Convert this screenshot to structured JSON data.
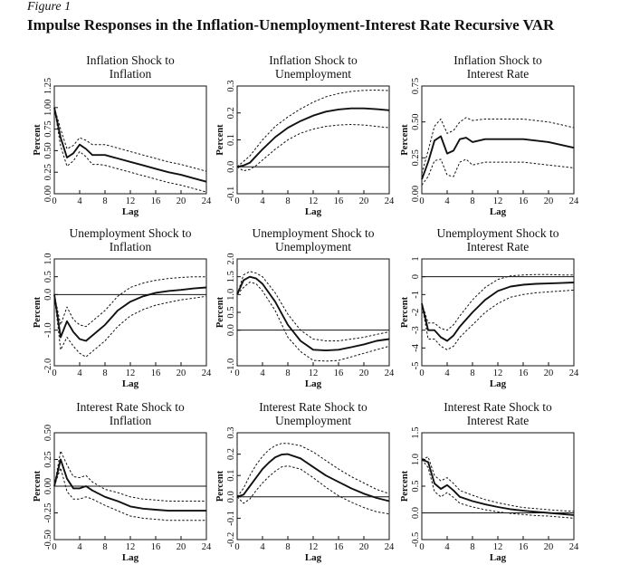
{
  "figure_label": "Figure 1",
  "figure_title": "Impulse Responses in the Inflation-Unemployment-Interest Rate Recursive VAR",
  "chart_data": [
    {
      "type": "line",
      "title_lines": [
        "Inflation Shock to",
        "Inflation"
      ],
      "xlabel": "Lag",
      "ylabel": "Percent",
      "xlim": [
        0,
        24
      ],
      "ylim": [
        0,
        1.25
      ],
      "xticks": [
        "0",
        "4",
        "8",
        "12",
        "16",
        "20",
        "24"
      ],
      "yticks": [
        "0.00",
        "0.25",
        "0.50",
        "0.75",
        "1.00",
        "1.25"
      ],
      "zero_line": false,
      "x": [
        0,
        1,
        2,
        3,
        4,
        5,
        6,
        7,
        8,
        10,
        12,
        14,
        16,
        18,
        20,
        22,
        24
      ],
      "series": [
        {
          "style": "solid",
          "values": [
            1.0,
            0.65,
            0.42,
            0.47,
            0.57,
            0.52,
            0.45,
            0.45,
            0.45,
            0.41,
            0.37,
            0.33,
            0.29,
            0.25,
            0.22,
            0.18,
            0.14
          ]
        },
        {
          "style": "dashed",
          "values": [
            1.0,
            0.75,
            0.52,
            0.56,
            0.65,
            0.62,
            0.57,
            0.57,
            0.57,
            0.53,
            0.49,
            0.45,
            0.41,
            0.37,
            0.34,
            0.3,
            0.26
          ]
        },
        {
          "style": "dashed",
          "values": [
            1.0,
            0.55,
            0.32,
            0.38,
            0.49,
            0.43,
            0.34,
            0.34,
            0.33,
            0.29,
            0.25,
            0.21,
            0.17,
            0.13,
            0.1,
            0.06,
            0.02
          ]
        }
      ]
    },
    {
      "type": "line",
      "title_lines": [
        "Inflation Shock to",
        "Unemployment"
      ],
      "xlabel": "Lag",
      "ylabel": "Percent",
      "xlim": [
        0,
        24
      ],
      "ylim": [
        -0.1,
        0.3
      ],
      "xticks": [
        "0",
        "4",
        "8",
        "12",
        "16",
        "20",
        "24"
      ],
      "yticks": [
        "-0.1",
        "0.0",
        "0.1",
        "0.2",
        "0.3"
      ],
      "zero_line": true,
      "x": [
        0,
        1,
        2,
        3,
        4,
        6,
        8,
        10,
        12,
        14,
        16,
        18,
        20,
        22,
        24
      ],
      "series": [
        {
          "style": "solid",
          "values": [
            0.0,
            0.005,
            0.015,
            0.04,
            0.065,
            0.11,
            0.145,
            0.17,
            0.19,
            0.205,
            0.213,
            0.217,
            0.217,
            0.214,
            0.21
          ]
        },
        {
          "style": "dashed",
          "values": [
            0.0,
            0.02,
            0.04,
            0.07,
            0.1,
            0.15,
            0.185,
            0.215,
            0.24,
            0.26,
            0.272,
            0.28,
            0.284,
            0.285,
            0.283
          ]
        },
        {
          "style": "dashed",
          "values": [
            0.0,
            -0.015,
            -0.01,
            0.005,
            0.025,
            0.065,
            0.1,
            0.125,
            0.14,
            0.15,
            0.155,
            0.157,
            0.155,
            0.15,
            0.145
          ]
        }
      ]
    },
    {
      "type": "line",
      "title_lines": [
        "Inflation Shock to",
        "Interest Rate"
      ],
      "xlabel": "Lag",
      "ylabel": "Percent",
      "xlim": [
        0,
        24
      ],
      "ylim": [
        0,
        0.75
      ],
      "xticks": [
        "0",
        "4",
        "8",
        "12",
        "16",
        "20",
        "24"
      ],
      "yticks": [
        "0.00",
        "0.25",
        "0.50",
        "0.75"
      ],
      "zero_line": false,
      "x": [
        0,
        1,
        2,
        3,
        4,
        5,
        6,
        7,
        8,
        10,
        12,
        14,
        16,
        18,
        20,
        22,
        24
      ],
      "series": [
        {
          "style": "solid",
          "values": [
            0.1,
            0.22,
            0.37,
            0.4,
            0.28,
            0.3,
            0.38,
            0.39,
            0.36,
            0.38,
            0.38,
            0.38,
            0.38,
            0.37,
            0.36,
            0.34,
            0.32
          ]
        },
        {
          "style": "dashed",
          "values": [
            0.14,
            0.3,
            0.47,
            0.52,
            0.42,
            0.44,
            0.5,
            0.53,
            0.51,
            0.52,
            0.52,
            0.52,
            0.52,
            0.51,
            0.5,
            0.48,
            0.46
          ]
        },
        {
          "style": "dashed",
          "values": [
            0.06,
            0.12,
            0.23,
            0.24,
            0.13,
            0.12,
            0.22,
            0.24,
            0.2,
            0.22,
            0.22,
            0.22,
            0.22,
            0.21,
            0.2,
            0.19,
            0.18
          ]
        }
      ]
    },
    {
      "type": "line",
      "title_lines": [
        "Unemployment Shock to",
        "Inflation"
      ],
      "xlabel": "Lag",
      "ylabel": "Percent",
      "xlim": [
        0,
        24
      ],
      "ylim": [
        -2.0,
        1.0
      ],
      "xticks": [
        "0",
        "4",
        "8",
        "12",
        "16",
        "20",
        "24"
      ],
      "yticks": [
        "-2.0",
        "-1.0",
        "0.0",
        "0.5",
        "1.0"
      ],
      "zero_line": true,
      "x": [
        0,
        1,
        2,
        3,
        4,
        5,
        6,
        8,
        10,
        12,
        14,
        16,
        18,
        20,
        22,
        24
      ],
      "series": [
        {
          "style": "solid",
          "values": [
            0.0,
            -1.2,
            -0.75,
            -1.05,
            -1.25,
            -1.3,
            -1.15,
            -0.85,
            -0.45,
            -0.2,
            -0.05,
            0.05,
            0.1,
            0.13,
            0.17,
            0.2
          ]
        },
        {
          "style": "dashed",
          "values": [
            0.0,
            -0.85,
            -0.35,
            -0.7,
            -0.85,
            -0.9,
            -0.75,
            -0.45,
            -0.05,
            0.2,
            0.32,
            0.4,
            0.45,
            0.48,
            0.5,
            0.5
          ]
        },
        {
          "style": "dashed",
          "values": [
            0.0,
            -1.55,
            -1.2,
            -1.45,
            -1.65,
            -1.75,
            -1.6,
            -1.3,
            -0.9,
            -0.6,
            -0.42,
            -0.3,
            -0.22,
            -0.15,
            -0.1,
            -0.05
          ]
        }
      ]
    },
    {
      "type": "line",
      "title_lines": [
        "Unemployment Shock to",
        "Unemployment"
      ],
      "xlabel": "Lag",
      "ylabel": "Percent",
      "xlim": [
        0,
        24
      ],
      "ylim": [
        -1.0,
        2.0
      ],
      "xticks": [
        "0",
        "4",
        "8",
        "12",
        "16",
        "20",
        "24"
      ],
      "yticks": [
        "-1.0",
        "0.0",
        "0.5",
        "1.0",
        "1.5",
        "2.0"
      ],
      "zero_line": true,
      "x": [
        0,
        1,
        2,
        3,
        4,
        6,
        8,
        10,
        12,
        14,
        16,
        18,
        20,
        22,
        24
      ],
      "series": [
        {
          "style": "solid",
          "values": [
            1.0,
            1.4,
            1.5,
            1.45,
            1.3,
            0.8,
            0.15,
            -0.3,
            -0.55,
            -0.57,
            -0.55,
            -0.48,
            -0.4,
            -0.3,
            -0.25
          ]
        },
        {
          "style": "dashed",
          "values": [
            1.0,
            1.55,
            1.65,
            1.6,
            1.5,
            1.05,
            0.45,
            0.0,
            -0.25,
            -0.3,
            -0.3,
            -0.25,
            -0.2,
            -0.12,
            -0.05
          ]
        },
        {
          "style": "dashed",
          "values": [
            1.0,
            1.2,
            1.35,
            1.3,
            1.1,
            0.55,
            -0.2,
            -0.6,
            -0.85,
            -0.87,
            -0.85,
            -0.75,
            -0.65,
            -0.55,
            -0.45
          ]
        }
      ]
    },
    {
      "type": "line",
      "title_lines": [
        "Unemployment Shock to",
        "Interest Rate"
      ],
      "xlabel": "Lag",
      "ylabel": "Percent",
      "xlim": [
        0,
        24
      ],
      "ylim": [
        -5,
        1
      ],
      "xticks": [
        "0",
        "4",
        "8",
        "12",
        "16",
        "20",
        "24"
      ],
      "yticks": [
        "-5",
        "-4",
        "-3",
        "-2",
        "-1",
        "0",
        "1"
      ],
      "zero_line": true,
      "x": [
        0,
        1,
        2,
        3,
        4,
        5,
        6,
        8,
        10,
        12,
        14,
        16,
        18,
        20,
        22,
        24
      ],
      "series": [
        {
          "style": "solid",
          "values": [
            -1.5,
            -3.0,
            -3.0,
            -3.4,
            -3.6,
            -3.3,
            -2.8,
            -2.0,
            -1.3,
            -0.8,
            -0.55,
            -0.45,
            -0.4,
            -0.38,
            -0.35,
            -0.32
          ]
        },
        {
          "style": "dashed",
          "values": [
            -1.5,
            -2.6,
            -2.6,
            -2.9,
            -3.0,
            -2.7,
            -2.2,
            -1.3,
            -0.6,
            -0.15,
            0.05,
            0.1,
            0.12,
            0.12,
            0.1,
            0.1
          ]
        },
        {
          "style": "dashed",
          "values": [
            -1.5,
            -3.5,
            -3.5,
            -3.9,
            -4.1,
            -3.9,
            -3.4,
            -2.7,
            -2.0,
            -1.5,
            -1.15,
            -1.0,
            -0.9,
            -0.85,
            -0.8,
            -0.75
          ]
        }
      ]
    },
    {
      "type": "line",
      "title_lines": [
        "Interest Rate Shock to",
        "Inflation"
      ],
      "xlabel": "Lag",
      "ylabel": "Percent",
      "xlim": [
        0,
        24
      ],
      "ylim": [
        -0.5,
        0.5
      ],
      "xticks": [
        "0",
        "4",
        "8",
        "12",
        "16",
        "20",
        "24"
      ],
      "yticks": [
        "-0.50",
        "-0.25",
        "0.00",
        "0.25",
        "0.50"
      ],
      "zero_line": true,
      "x": [
        0,
        1,
        2,
        3,
        4,
        5,
        6,
        8,
        10,
        12,
        14,
        16,
        18,
        20,
        22,
        24
      ],
      "series": [
        {
          "style": "solid",
          "values": [
            0.0,
            0.25,
            0.07,
            -0.02,
            -0.02,
            0.0,
            -0.04,
            -0.1,
            -0.14,
            -0.19,
            -0.21,
            -0.22,
            -0.23,
            -0.23,
            -0.23,
            -0.23
          ]
        },
        {
          "style": "dashed",
          "values": [
            0.0,
            0.33,
            0.2,
            0.09,
            0.08,
            0.1,
            0.04,
            -0.03,
            -0.06,
            -0.1,
            -0.12,
            -0.13,
            -0.14,
            -0.14,
            -0.14,
            -0.14
          ]
        },
        {
          "style": "dashed",
          "values": [
            0.0,
            0.17,
            -0.05,
            -0.12,
            -0.12,
            -0.1,
            -0.12,
            -0.18,
            -0.23,
            -0.28,
            -0.3,
            -0.31,
            -0.32,
            -0.32,
            -0.32,
            -0.32
          ]
        }
      ]
    },
    {
      "type": "line",
      "title_lines": [
        "Interest Rate Shock to",
        "Unemployment"
      ],
      "xlabel": "Lag",
      "ylabel": "Percent",
      "xlim": [
        0,
        24
      ],
      "ylim": [
        -0.2,
        0.3
      ],
      "xticks": [
        "0",
        "4",
        "8",
        "12",
        "16",
        "20",
        "24"
      ],
      "yticks": [
        "-0.2",
        "-0.1",
        "0.0",
        "0.1",
        "0.2",
        "0.3"
      ],
      "zero_line": true,
      "x": [
        0,
        1,
        2,
        3,
        4,
        5,
        6,
        7,
        8,
        10,
        12,
        14,
        16,
        18,
        20,
        22,
        24
      ],
      "series": [
        {
          "style": "solid",
          "values": [
            0.0,
            0.01,
            0.05,
            0.09,
            0.13,
            0.16,
            0.185,
            0.198,
            0.2,
            0.18,
            0.14,
            0.1,
            0.07,
            0.04,
            0.015,
            -0.005,
            -0.02
          ]
        },
        {
          "style": "dashed",
          "values": [
            0.0,
            0.04,
            0.1,
            0.15,
            0.19,
            0.22,
            0.24,
            0.25,
            0.25,
            0.24,
            0.21,
            0.17,
            0.13,
            0.095,
            0.065,
            0.035,
            0.015
          ]
        },
        {
          "style": "dashed",
          "values": [
            0.0,
            -0.03,
            -0.01,
            0.03,
            0.065,
            0.095,
            0.12,
            0.14,
            0.145,
            0.13,
            0.09,
            0.045,
            0.005,
            -0.025,
            -0.05,
            -0.07,
            -0.08
          ]
        }
      ]
    },
    {
      "type": "line",
      "title_lines": [
        "Interest Rate Shock to",
        "Interest Rate"
      ],
      "xlabel": "Lag",
      "ylabel": "Percent",
      "xlim": [
        0,
        24
      ],
      "ylim": [
        -0.5,
        1.5
      ],
      "xticks": [
        "0",
        "4",
        "8",
        "12",
        "16",
        "20",
        "24"
      ],
      "yticks": [
        "-0.5",
        "0.0",
        "0.5",
        "1.0",
        "1.5"
      ],
      "zero_line": true,
      "x": [
        0,
        1,
        2,
        3,
        4,
        5,
        6,
        8,
        10,
        12,
        14,
        16,
        18,
        20,
        22,
        24
      ],
      "series": [
        {
          "style": "solid",
          "values": [
            1.0,
            0.95,
            0.55,
            0.45,
            0.52,
            0.42,
            0.3,
            0.22,
            0.16,
            0.11,
            0.07,
            0.04,
            0.02,
            0.0,
            -0.02,
            -0.04
          ]
        },
        {
          "style": "dashed",
          "values": [
            1.0,
            1.05,
            0.7,
            0.6,
            0.66,
            0.55,
            0.42,
            0.33,
            0.25,
            0.19,
            0.14,
            0.1,
            0.08,
            0.06,
            0.04,
            0.03
          ]
        },
        {
          "style": "dashed",
          "values": [
            1.0,
            0.85,
            0.4,
            0.3,
            0.38,
            0.29,
            0.18,
            0.11,
            0.06,
            0.02,
            -0.01,
            -0.03,
            -0.05,
            -0.06,
            -0.08,
            -0.1
          ]
        }
      ]
    }
  ]
}
